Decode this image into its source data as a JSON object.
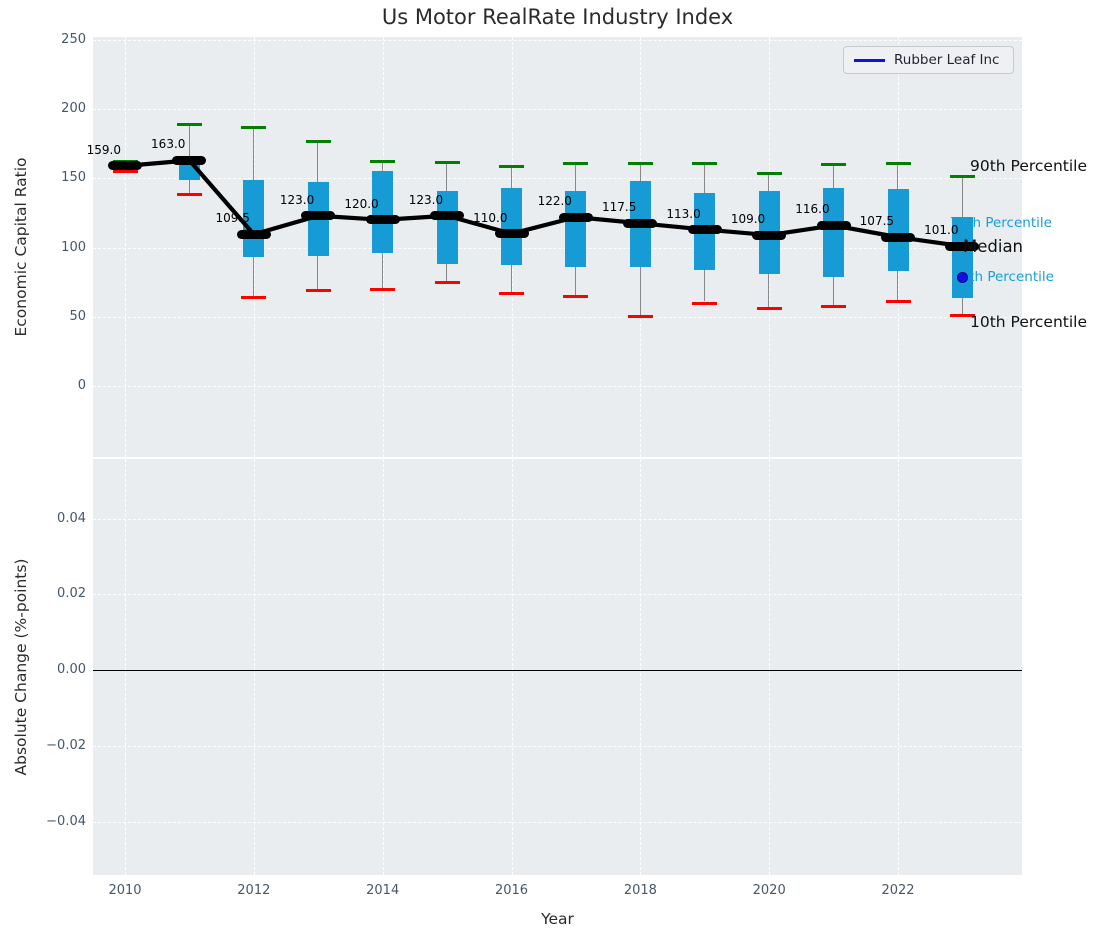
{
  "figure": {
    "title": "Us Motor RealRate Industry Index"
  },
  "legend": {
    "label": "Rubber Leaf Inc"
  },
  "axes": {
    "top": {
      "ylabel": "Economic Capital Ratio",
      "yticks": [
        "250",
        "200",
        "150",
        "100",
        "50",
        "0"
      ],
      "ytick_values": [
        250,
        200,
        150,
        100,
        50,
        0
      ]
    },
    "bottom": {
      "ylabel": "Absolute Change (%-points)",
      "yticks": [
        "0.04",
        "0.02",
        "0.00",
        "−0.02",
        "−0.04"
      ],
      "ytick_values": [
        0.04,
        0.02,
        0,
        -0.02,
        -0.04
      ]
    },
    "x": {
      "label": "Year",
      "ticks": [
        "2010",
        "2012",
        "2014",
        "2016",
        "2018",
        "2020",
        "2022"
      ],
      "tick_values": [
        2010,
        2012,
        2014,
        2016,
        2018,
        2020,
        2022
      ]
    }
  },
  "percentile_labels": {
    "p90": "90th Percentile",
    "p75": "75th Percentile",
    "median": "Median",
    "p25": "25th Percentile",
    "p10": "10th Percentile"
  },
  "colors": {
    "box": "#169bd5",
    "whisker": "#888888",
    "p90_cap": "#008000",
    "p10_cap": "#fe0000",
    "median": "#000000",
    "company_line": "#0f0fe8",
    "cyan_label": "#189fd8",
    "plot_bg": "#e9edf0",
    "grid": "#ffffff",
    "tick_text": "#46566b"
  },
  "chart_data": {
    "type": "box",
    "title": "Us Motor RealRate Industry Index",
    "xlabel": "Year",
    "ylabel_top": "Economic Capital Ratio",
    "ylabel_bottom": "Absolute Change (%-points)",
    "grid": true,
    "legend_position": "upper right",
    "top_axis_range": [
      0,
      250
    ],
    "bottom_axis_range": [
      -0.04,
      0.04
    ],
    "years": [
      2010,
      2011,
      2012,
      2013,
      2014,
      2015,
      2016,
      2017,
      2018,
      2019,
      2020,
      2021,
      2022,
      2023
    ],
    "boxes": [
      {
        "year": 2010,
        "p10": 156,
        "q1": 157.5,
        "median": 159,
        "q3": 161,
        "p90": 163.5
      },
      {
        "year": 2011,
        "p10": 139.5,
        "q1": 149,
        "median": 163,
        "q3": 163.5,
        "p90": 190
      },
      {
        "year": 2012,
        "p10": 65,
        "q1": 93.5,
        "median": 109.5,
        "q3": 149,
        "p90": 188
      },
      {
        "year": 2013,
        "p10": 70,
        "q1": 94,
        "median": 123,
        "q3": 147.5,
        "p90": 178
      },
      {
        "year": 2014,
        "p10": 70.5,
        "q1": 96,
        "median": 120,
        "q3": 155,
        "p90": 163
      },
      {
        "year": 2015,
        "p10": 76,
        "q1": 88,
        "median": 123,
        "q3": 141,
        "p90": 162.5
      },
      {
        "year": 2016,
        "p10": 68,
        "q1": 87.5,
        "median": 110,
        "q3": 143,
        "p90": 160
      },
      {
        "year": 2017,
        "p10": 66,
        "q1": 86,
        "median": 122,
        "q3": 141,
        "p90": 162
      },
      {
        "year": 2018,
        "p10": 51,
        "q1": 86,
        "median": 117.5,
        "q3": 148,
        "p90": 162
      },
      {
        "year": 2019,
        "p10": 61,
        "q1": 84,
        "median": 113,
        "q3": 139.5,
        "p90": 162
      },
      {
        "year": 2020,
        "p10": 57,
        "q1": 81,
        "median": 109,
        "q3": 141,
        "p90": 154.5
      },
      {
        "year": 2021,
        "p10": 58.5,
        "q1": 79,
        "median": 116,
        "q3": 143,
        "p90": 161
      },
      {
        "year": 2022,
        "p10": 62,
        "q1": 83,
        "median": 107.5,
        "q3": 142,
        "p90": 162
      },
      {
        "year": 2023,
        "p10": 52,
        "q1": 63.5,
        "median": 101,
        "q3": 122,
        "p90": 152.5
      }
    ],
    "median_labels": [
      "159.0",
      "163.0",
      "109.5",
      "123.0",
      "120.0",
      "123.0",
      "110.0",
      "122.0",
      "117.5",
      "113.0",
      "109.0",
      "116.0",
      "107.5",
      "101.0"
    ],
    "company": {
      "name": "Rubber Leaf Inc",
      "points": [
        {
          "year": 2023,
          "value": 78
        }
      ]
    },
    "bottom_panel_series": []
  }
}
